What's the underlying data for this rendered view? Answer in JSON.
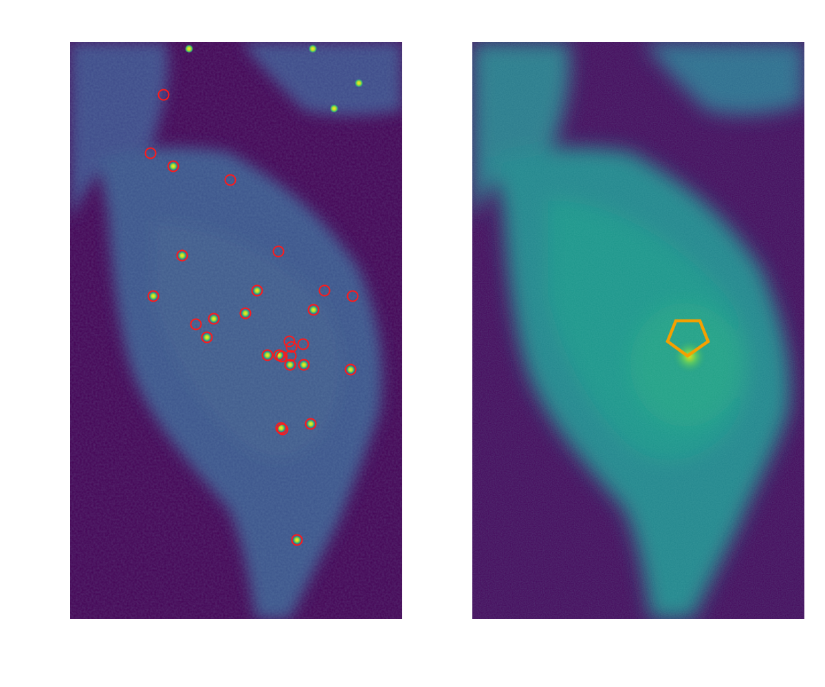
{
  "figure": {
    "panels": [
      {
        "id": "left",
        "description_role": "spot-detection-view",
        "marker_color": "#ff1a1a",
        "detected_spot_count": 29
      },
      {
        "id": "right",
        "description_role": "region-of-interest-view",
        "marker_color": "#f5a000",
        "roi_shape": "pentagon"
      }
    ],
    "colormap": "viridis",
    "colors": {
      "background_dark": "#440154",
      "cell_dim": "#3b4f8c",
      "cell_bright": "#31688e",
      "spot": "#fde725",
      "spot_mid": "#35b779"
    }
  }
}
